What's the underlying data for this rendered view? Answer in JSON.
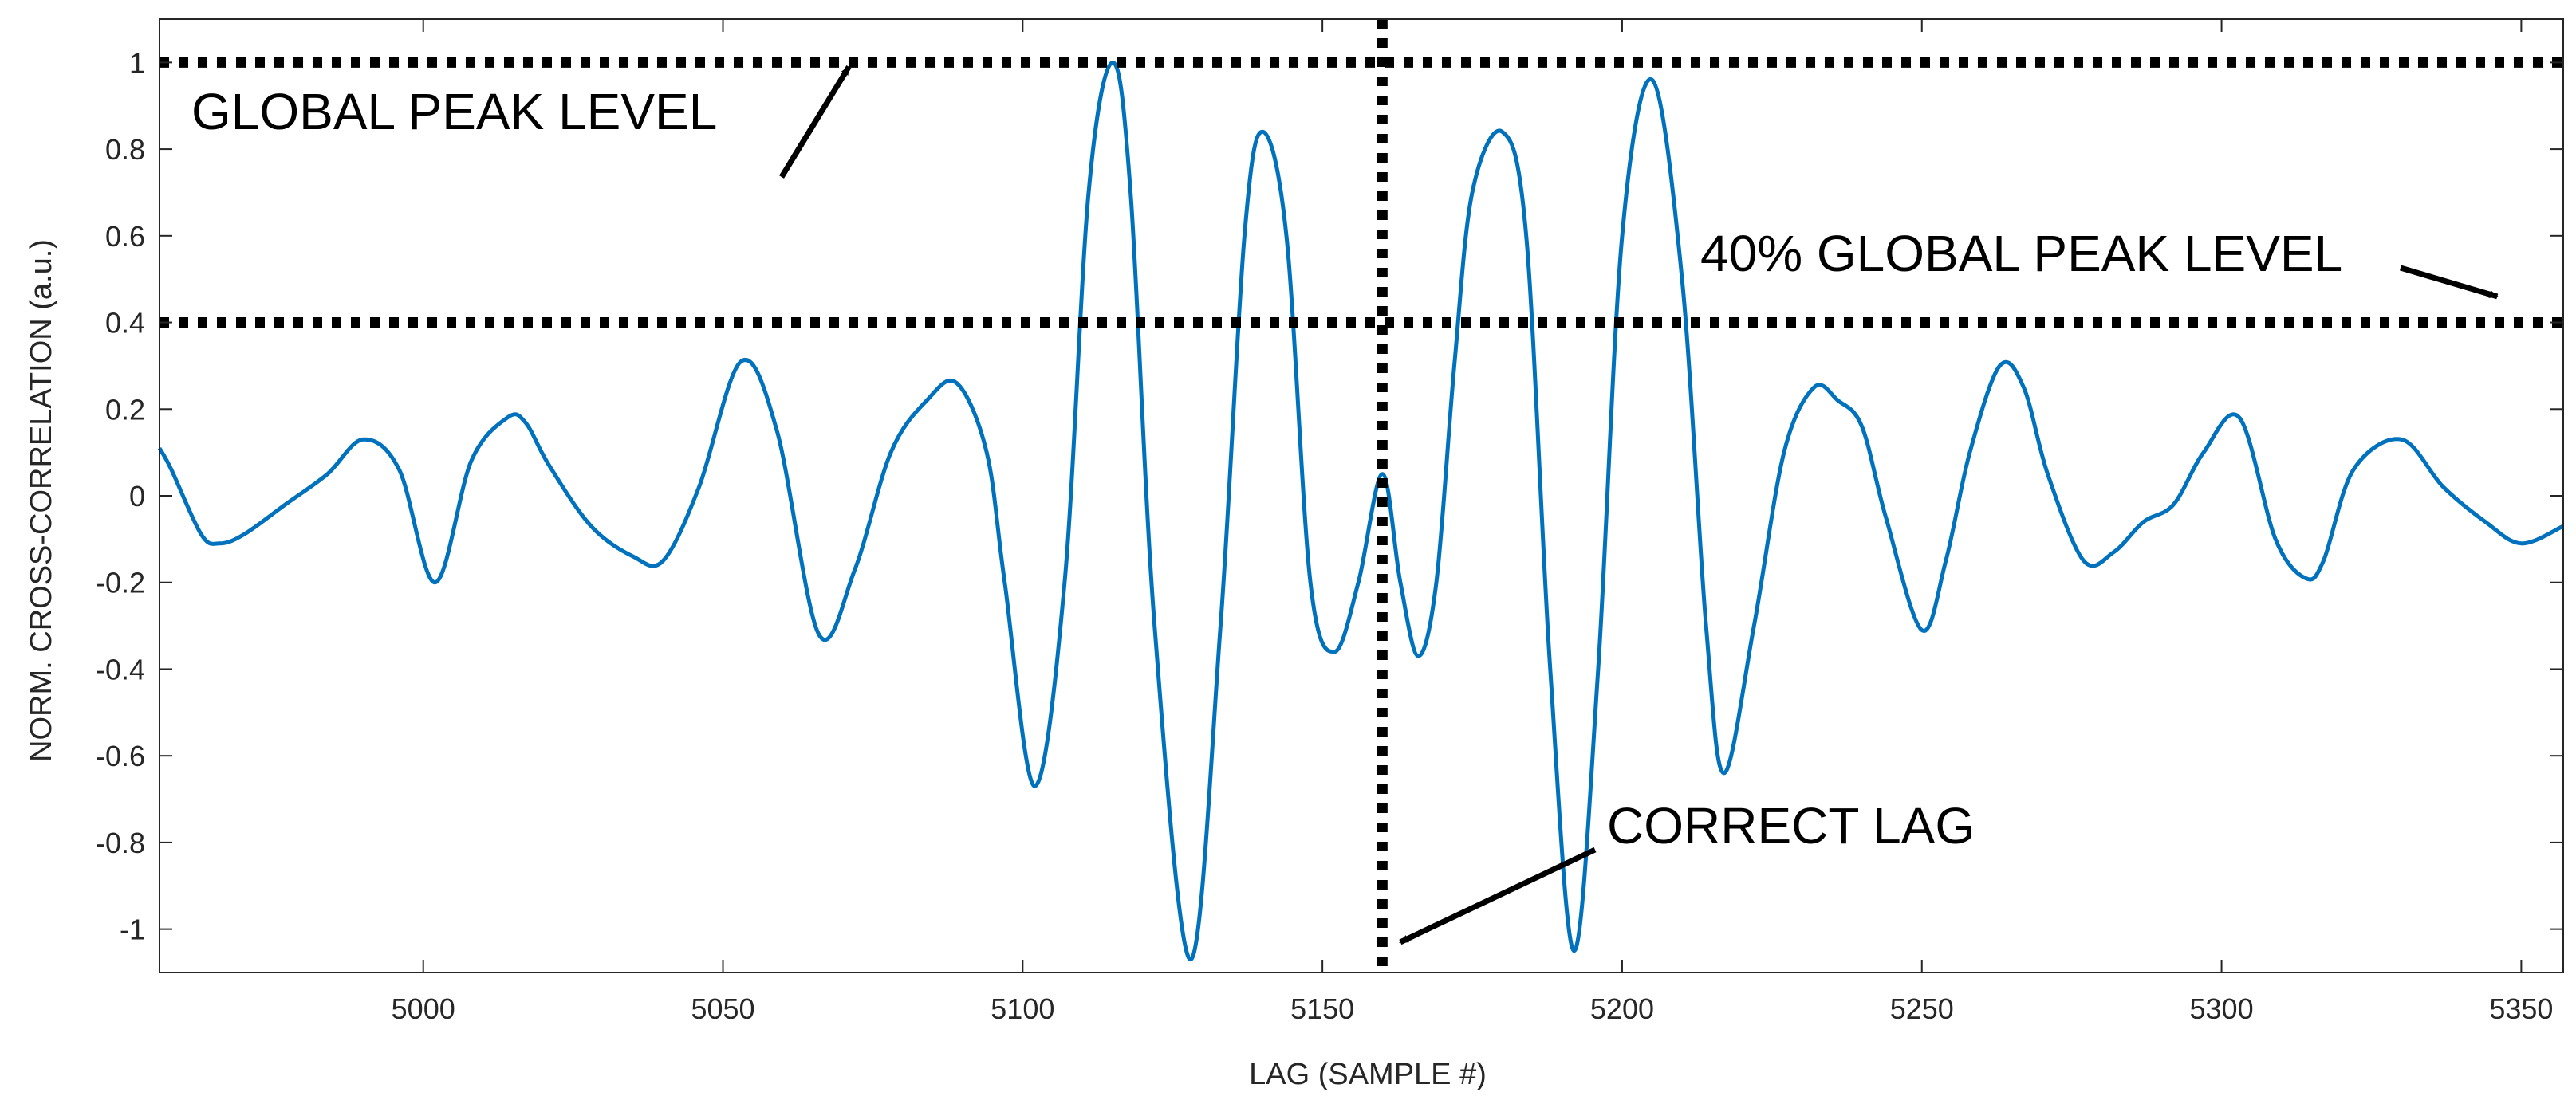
{
  "chart_data": {
    "type": "line",
    "title": "",
    "xlabel": "LAG (SAMPLE #)",
    "ylabel": "NORM. CROSS-CORRELATION (a.u.)",
    "xlim": [
      4956,
      5357
    ],
    "ylim": [
      -1.1,
      1.1
    ],
    "xticks": [
      5000,
      5050,
      5100,
      5150,
      5200,
      5250,
      5300,
      5350
    ],
    "xtick_labels": [
      "5000",
      "5050",
      "5100",
      "5150",
      "5200",
      "5250",
      "5300",
      "5350"
    ],
    "yticks": [
      1,
      0.8,
      0.6,
      0.4,
      0.2,
      0,
      -0.2,
      -0.4,
      -0.6,
      -0.8,
      -1
    ],
    "ytick_labels": [
      "1",
      "0.8",
      "0.6",
      "0.4",
      "0.2",
      "0",
      "-0.2",
      "-0.4",
      "-0.6",
      "-0.8",
      "-1"
    ],
    "grid": false,
    "series": [
      {
        "color": "#0072BD",
        "x": [
          4956,
          4958,
          4963,
          4966,
          4970,
          4977,
          4984,
          4990,
          4996,
          5002,
          5008,
          5014,
          5017,
          5021,
          5028,
          5035,
          5040,
          5046,
          5053,
          5059,
          5066,
          5072,
          5078,
          5084,
          5089,
          5094,
          5097,
          5102,
          5107,
          5111,
          5115,
          5118,
          5122,
          5128,
          5133,
          5137,
          5140,
          5144,
          5148,
          5152,
          5156,
          5160,
          5163,
          5166,
          5169,
          5172,
          5175,
          5180,
          5184,
          5188,
          5192,
          5196,
          5200,
          5205,
          5210,
          5214,
          5217,
          5222,
          5227,
          5232,
          5236,
          5240,
          5244,
          5250,
          5254,
          5258,
          5263,
          5267,
          5271,
          5277,
          5282,
          5287,
          5292,
          5297,
          5303,
          5309,
          5314,
          5317,
          5322,
          5330,
          5337,
          5344,
          5350,
          5357
        ],
        "y": [
          0.11,
          0.06,
          -0.09,
          -0.11,
          -0.09,
          -0.02,
          0.05,
          0.13,
          0.06,
          -0.2,
          0.08,
          0.18,
          0.17,
          0.07,
          -0.07,
          -0.14,
          -0.15,
          0.02,
          0.31,
          0.15,
          -0.32,
          -0.17,
          0.1,
          0.22,
          0.26,
          0.1,
          -0.2,
          -0.67,
          -0.2,
          0.7,
          1.0,
          0.7,
          -0.3,
          -1.07,
          -0.3,
          0.6,
          0.84,
          0.6,
          -0.2,
          -0.36,
          -0.2,
          0.05,
          -0.2,
          -0.37,
          -0.2,
          0.3,
          0.7,
          0.84,
          0.6,
          -0.4,
          -1.05,
          -0.4,
          0.6,
          0.96,
          0.5,
          -0.3,
          -0.64,
          -0.3,
          0.1,
          0.25,
          0.22,
          0.16,
          -0.05,
          -0.31,
          -0.15,
          0.1,
          0.3,
          0.25,
          0.05,
          -0.15,
          -0.13,
          -0.06,
          -0.02,
          0.1,
          0.18,
          -0.1,
          -0.19,
          -0.15,
          0.06,
          0.13,
          0.02,
          -0.06,
          -0.11,
          -0.07
        ]
      }
    ],
    "reference_lines": [
      {
        "orientation": "horizontal",
        "value": 1.0
      },
      {
        "orientation": "horizontal",
        "value": 0.4
      },
      {
        "orientation": "vertical",
        "value": 5160
      }
    ],
    "annotations": [
      {
        "text": "GLOBAL PEAK LEVEL",
        "points_to": [
          5071,
          0.99
        ]
      },
      {
        "text": "40% GLOBAL PEAK LEVEL",
        "points_to": [
          5346,
          0.46
        ]
      },
      {
        "text": "CORRECT LAG",
        "points_to": [
          5163,
          -1.03
        ]
      }
    ]
  }
}
